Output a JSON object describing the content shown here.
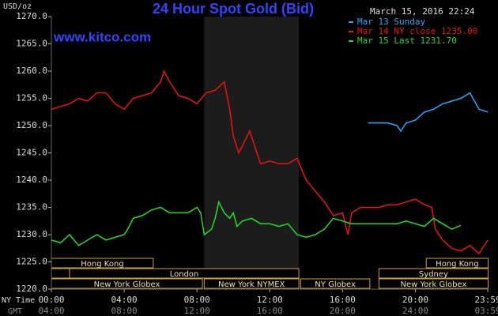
{
  "chart_data": {
    "type": "line",
    "title": "24 Hour Spot Gold (Bid)",
    "timestamp": "March 15, 2016 22:24",
    "source": "www.kitco.com",
    "y_label": "USD/oz",
    "x_label": "NY Time",
    "x2_label": "GMT",
    "xlim": [
      0,
      24
    ],
    "xticks": [
      {
        "value": 0,
        "label": "00:00"
      },
      {
        "value": 4,
        "label": "04:00"
      },
      {
        "value": 8,
        "label": "08:00"
      },
      {
        "value": 12,
        "label": "12:00"
      },
      {
        "value": 16,
        "label": "16:00"
      },
      {
        "value": 20,
        "label": "20:00"
      },
      {
        "value": 23.98,
        "label": "23:59"
      }
    ],
    "x2tick_labels": [
      "04:00",
      "08:00",
      "12:00",
      "16:00",
      "20:00",
      "24:00",
      "03:59"
    ],
    "ylim": [
      1220,
      1270
    ],
    "yticks": [
      {
        "value": 1220,
        "label": "1220.0"
      },
      {
        "value": 1225,
        "label": "1225.0"
      },
      {
        "value": 1230,
        "label": "1230.0"
      },
      {
        "value": 1235,
        "label": "1235.0"
      },
      {
        "value": 1240,
        "label": "1240.0"
      },
      {
        "value": 1245,
        "label": "1245.0"
      },
      {
        "value": 1250,
        "label": "1250.0"
      },
      {
        "value": 1255,
        "label": "1255.0"
      },
      {
        "value": 1260,
        "label": "1260.0"
      },
      {
        "value": 1265,
        "label": "1265.0"
      },
      {
        "value": 1270,
        "label": "1270.0"
      }
    ],
    "grid": false,
    "shaded_range": [
      8.4,
      13.6
    ],
    "series": [
      {
        "name": "Mar 13 Sunday",
        "color": "#22aaff",
        "x": [
          17.4,
          18,
          18.5,
          19,
          19.2,
          19.5,
          20,
          20.5,
          21,
          21.5,
          22,
          22.5,
          23,
          23.5,
          23.98
        ],
        "values": [
          1250.5,
          1250.5,
          1250.5,
          1250,
          1249,
          1250.5,
          1251,
          1252.5,
          1253,
          1254,
          1254.5,
          1255,
          1256,
          1253,
          1252.5
        ]
      },
      {
        "name": "Mar 14 NY close 1235.00",
        "color": "#ee1111",
        "x": [
          0,
          0.5,
          1,
          1.5,
          2,
          2.5,
          3,
          3.5,
          4,
          4.5,
          5,
          5.5,
          6,
          6.2,
          6.5,
          7,
          7.5,
          8,
          8.5,
          9,
          9.5,
          9.8,
          10,
          10.3,
          10.6,
          10.9,
          11.2,
          11.5,
          12,
          12.5,
          13,
          13.5,
          14,
          14.5,
          15,
          15.5,
          16,
          16.3,
          16.5,
          17,
          17.5,
          18,
          18.5,
          19,
          19.5,
          20,
          20.5,
          20.9,
          21.1,
          21.5,
          22,
          22.5,
          23,
          23.5,
          23.98
        ],
        "values": [
          1253,
          1253.5,
          1254,
          1255,
          1254.5,
          1256,
          1256,
          1254,
          1253,
          1255,
          1255.5,
          1256,
          1258,
          1260,
          1258,
          1255.5,
          1255,
          1254,
          1256,
          1256.5,
          1258,
          1253,
          1248,
          1245,
          1247,
          1249,
          1246,
          1243,
          1243.5,
          1243,
          1243,
          1244,
          1240,
          1238,
          1236,
          1233.5,
          1234,
          1230,
          1234,
          1235,
          1235,
          1235,
          1235.5,
          1235.5,
          1236,
          1236.5,
          1235.5,
          1235,
          1231,
          1229,
          1227.5,
          1227,
          1228,
          1226.5,
          1229
        ]
      },
      {
        "name": "Mar 15 Last 1231.70",
        "color": "#22dd22",
        "x": [
          0,
          0.5,
          1,
          1.5,
          2,
          2.5,
          3,
          3.5,
          4,
          4.2,
          4.5,
          5,
          5.5,
          6,
          6.5,
          7,
          7.5,
          8,
          8.2,
          8.4,
          8.8,
          9,
          9.2,
          9.5,
          9.8,
          10,
          10.2,
          10.5,
          11,
          11.5,
          12,
          12.5,
          13,
          13.5,
          14,
          14.5,
          15,
          15.5,
          16,
          16.5,
          17,
          17.5,
          18,
          18.5,
          19,
          19.5,
          20,
          20.5,
          21,
          21.5,
          22,
          22.5
        ],
        "values": [
          1229,
          1228.5,
          1230,
          1228,
          1229,
          1230,
          1229,
          1229.5,
          1230,
          1231,
          1233,
          1233.5,
          1234.5,
          1235,
          1234,
          1234,
          1234,
          1235,
          1234,
          1230,
          1231,
          1233,
          1236,
          1234,
          1233,
          1234,
          1231.5,
          1232.5,
          1233,
          1232,
          1232,
          1231.5,
          1232,
          1230,
          1229.5,
          1230,
          1231,
          1233,
          1232.5,
          1232,
          1232,
          1232,
          1232,
          1232,
          1232,
          1232.5,
          1232,
          1231.5,
          1233,
          1232,
          1231,
          1231.7
        ]
      }
    ],
    "market_rows": [
      [
        {
          "label": "Hong Kong",
          "start": 0,
          "end": 5.6
        },
        {
          "label": "Hong Kong",
          "start": 20.6,
          "end": 24
        }
      ],
      [
        {
          "label": null,
          "start": 0,
          "end": 1
        },
        {
          "label": "London",
          "start": 1,
          "end": 13.6
        },
        {
          "label": "Sydney",
          "start": 18,
          "end": 24
        }
      ],
      [
        {
          "label": "New York Globex",
          "start": 0,
          "end": 8.3
        },
        {
          "label": "New York NYMEX",
          "start": 8.4,
          "end": 13.6
        },
        {
          "label": "NY Globex",
          "start": 13.7,
          "end": 17.5
        },
        {
          "label": "New York Globex",
          "start": 18,
          "end": 24
        }
      ]
    ]
  }
}
